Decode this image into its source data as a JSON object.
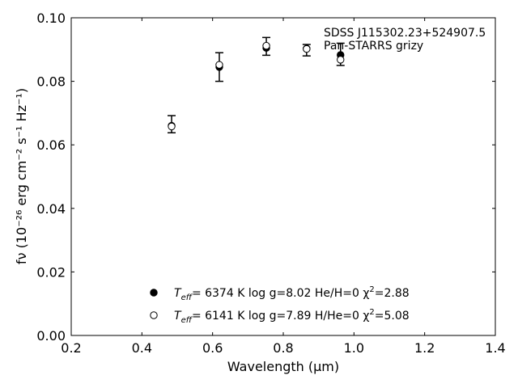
{
  "chart_data": {
    "type": "scatter",
    "xlabel": "Wavelength (μm)",
    "ylabel": "fν (10⁻²⁶ erg cm⁻² s⁻¹ Hz⁻¹)",
    "xlim": [
      0.2,
      1.4
    ],
    "ylim": [
      0.0,
      0.1
    ],
    "xticks": [
      "0.2",
      "0.4",
      "0.6",
      "0.8",
      "1.0",
      "1.2",
      "1.4"
    ],
    "yticks": [
      "0.00",
      "0.02",
      "0.04",
      "0.06",
      "0.08",
      "0.10"
    ],
    "grid": false,
    "annotations": [
      "SDSS J115302.23+524907.5",
      "Pan-STARRS grizy"
    ],
    "observed": {
      "x": [
        0.484,
        0.619,
        0.752,
        0.866,
        0.962
      ],
      "y": [
        0.0665,
        0.0845,
        0.091,
        0.0898,
        0.0885
      ],
      "yerr": [
        0.0027,
        0.0045,
        0.0028,
        0.0018,
        0.0035
      ]
    },
    "series": [
      {
        "name": "Teff= 6374 K  log g=8.02  He/H=0  χ²=2.88",
        "marker": "filled-circle",
        "x": [
          0.484,
          0.619,
          0.752,
          0.866,
          0.962
        ],
        "y": [
          0.066,
          0.0845,
          0.0905,
          0.0903,
          0.0883
        ]
      },
      {
        "name": "Teff= 6141 K  log g=7.89  H/He=0  χ²=5.08",
        "marker": "open-circle",
        "x": [
          0.484,
          0.619,
          0.752,
          0.866,
          0.962
        ],
        "y": [
          0.0658,
          0.0852,
          0.0912,
          0.0902,
          0.0868
        ]
      }
    ],
    "legend": {
      "position": "lower-center",
      "entries": [
        {
          "teff_label": "T",
          "teff_sub": "eff",
          "text": "=  6374 K  log g=8.02  He/H=0  χ",
          "sup": "2",
          "tail": "=2.88"
        },
        {
          "teff_label": "T",
          "teff_sub": "eff",
          "text": "=  6141 K  log g=7.89  H/He=0  χ",
          "sup": "2",
          "tail": "=5.08"
        }
      ]
    },
    "colors": {
      "marker": "#000000",
      "axes": "#000000"
    }
  }
}
